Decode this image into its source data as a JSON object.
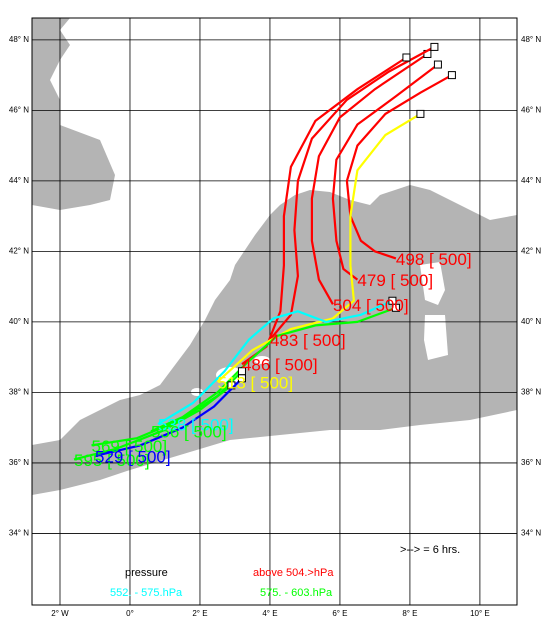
{
  "chart_data": {
    "type": "trajectory",
    "xlim": [
      -2.8,
      11.06
    ],
    "ylim": [
      31.97,
      48.62
    ],
    "grid": true,
    "xticks": [
      {
        "value": -2,
        "label": "2° W"
      },
      {
        "value": 0,
        "label": "0°"
      },
      {
        "value": 2,
        "label": "2° E"
      },
      {
        "value": 4,
        "label": "4° E"
      },
      {
        "value": 6,
        "label": "6° E"
      },
      {
        "value": 8,
        "label": "8° E"
      },
      {
        "value": 10,
        "label": "10° E"
      }
    ],
    "yticks": [
      {
        "value": 34,
        "label": "34° N"
      },
      {
        "value": 36,
        "label": "36° N"
      },
      {
        "value": 38,
        "label": "38° N"
      },
      {
        "value": 40,
        "label": "40° N"
      },
      {
        "value": 42,
        "label": "42° N"
      },
      {
        "value": 44,
        "label": "44° N"
      },
      {
        "value": 46,
        "label": "46° N"
      },
      {
        "value": 48,
        "label": "48° N"
      }
    ],
    "trajectories": [
      {
        "label": "498 [ 500]",
        "color": "#ff0000",
        "lon": [
          7.6,
          7.0,
          6.6,
          6.3,
          6.2,
          6.5,
          7.3,
          8.3,
          9.2
        ],
        "lat": [
          41.8,
          42.0,
          42.3,
          43.0,
          44.0,
          45.0,
          45.9,
          46.5,
          47.0
        ]
      },
      {
        "label": "479 [ 500]",
        "color": "#ff0000",
        "lon": [
          6.5,
          6.1,
          5.9,
          5.8,
          5.9,
          6.5,
          7.6,
          8.8
        ],
        "lat": [
          41.2,
          41.5,
          42.3,
          43.5,
          44.6,
          45.6,
          46.4,
          47.3
        ]
      },
      {
        "label": "504 [ 500]",
        "color": "#ff0000",
        "lon": [
          5.8,
          5.4,
          5.2,
          5.2,
          5.4,
          6.0,
          7.0,
          8.5
        ],
        "lat": [
          40.5,
          41.2,
          42.3,
          43.5,
          44.7,
          45.8,
          46.6,
          47.6
        ]
      },
      {
        "label": "483 [ 500]",
        "color": "#ff0000",
        "lon": [
          4.0,
          4.6,
          4.8,
          4.7,
          4.8,
          5.2,
          6.2,
          7.4,
          8.7
        ],
        "lat": [
          39.5,
          40.2,
          41.3,
          42.6,
          44.0,
          45.2,
          46.3,
          47.1,
          47.8
        ]
      },
      {
        "label": "486 [ 500]",
        "color": "#ff0000",
        "lon": [
          3.2,
          3.9,
          4.3,
          4.4,
          4.4,
          4.6,
          5.3,
          6.5,
          7.9
        ],
        "lat": [
          38.8,
          39.3,
          40.3,
          41.6,
          43.0,
          44.4,
          45.7,
          46.6,
          47.5
        ]
      },
      {
        "label": "513 [ 500]",
        "color": "#ffff00",
        "lon": [
          2.5,
          3.5,
          4.6,
          5.8,
          6.4,
          6.3,
          6.3,
          6.5,
          7.3,
          8.3
        ],
        "lat": [
          38.3,
          39.2,
          39.8,
          40.1,
          40.6,
          41.6,
          43.0,
          44.3,
          45.3,
          45.9
        ]
      },
      {
        "label": "538 [ 500]",
        "color": "#00ffff",
        "lon": [
          0.8,
          1.8,
          2.7,
          3.4,
          4.1,
          4.8,
          5.6,
          6.6,
          7.5
        ],
        "lat": [
          37.1,
          37.7,
          38.6,
          39.5,
          40.1,
          40.3,
          40.0,
          40.2,
          40.6
        ]
      },
      {
        "label": "556 [ 500]",
        "color": "#00ff00",
        "lon": [
          0.6,
          1.5,
          2.5,
          3.3,
          4.2,
          5.3,
          6.5,
          7.6
        ],
        "lat": [
          36.9,
          37.3,
          38.0,
          38.8,
          39.6,
          39.9,
          40.0,
          40.4
        ]
      },
      {
        "label": "569 [ 500]",
        "color": "#00ff00",
        "lon": [
          -1.1,
          0.2,
          1.4,
          2.5,
          3.2
        ],
        "lat": [
          36.5,
          36.7,
          37.2,
          37.9,
          38.6
        ]
      },
      {
        "label": "595 [ 500]",
        "color": "#00ff00",
        "lon": [
          -1.6,
          -0.4,
          0.9,
          2.0,
          2.9
        ],
        "lat": [
          36.1,
          36.4,
          36.9,
          37.5,
          38.2
        ]
      },
      {
        "label": "529 [ 500]",
        "color": "#0000ff",
        "lon": [
          -1.0,
          0.3,
          1.5,
          2.4,
          3.2
        ],
        "lat": [
          36.2,
          36.5,
          37.0,
          37.6,
          38.4
        ]
      }
    ],
    "legend_title": "pressure",
    "legend": [
      {
        "label": "above  504.>hPa",
        "color": "#ff0000"
      },
      {
        "label": "552. -  575.hPa",
        "color": "#00ffff"
      },
      {
        "label": "575. -  603.hPa",
        "color": "#00ff00"
      }
    ],
    "note": ">--> =  6 hrs."
  }
}
